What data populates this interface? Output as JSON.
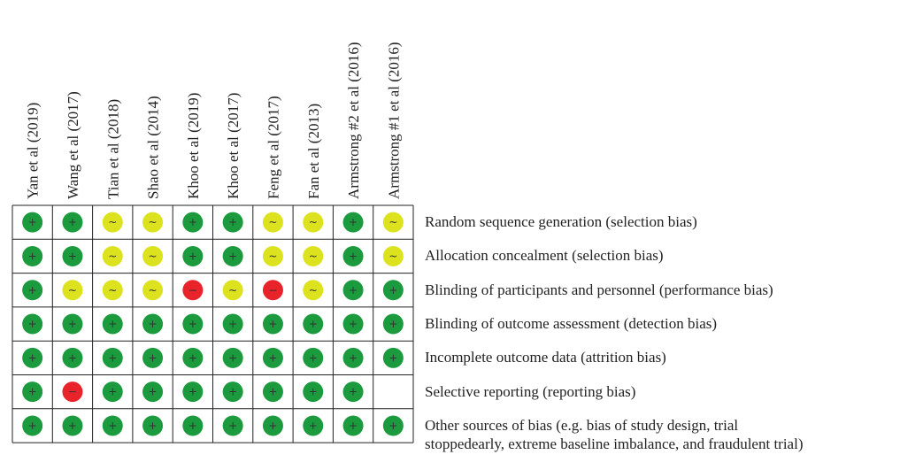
{
  "studies": [
    "Yan et al (2019)",
    "Wang et al (2017)",
    "Tian et al (2018)",
    "Shao et al (2014)",
    "Khoo et al (2019)",
    "Khoo et al (2017)",
    "Feng et al (2017)",
    "Fan et al (2013)",
    "Armstrong #2 et al (2016)",
    "Armstrong #1 et al (2016)"
  ],
  "domains": [
    [
      "Random sequence generation (selection bias)"
    ],
    [
      "Allocation concealment (selection bias)"
    ],
    [
      "Blinding of participants and personnel (performance bias)"
    ],
    [
      "Blinding of outcome assessment (detection bias)"
    ],
    [
      "Incomplete outcome data (attrition bias)"
    ],
    [
      "Selective reporting (reporting bias)"
    ],
    [
      "Other sources of bias (e.g. bias of study design, trial",
      "stoppedearly, extreme baseline imbalance, and fraudulent trial)"
    ]
  ],
  "judgments": [
    [
      "+",
      "+",
      "~",
      "~",
      "+",
      "+",
      "~",
      "~",
      "+",
      "~"
    ],
    [
      "+",
      "+",
      "~",
      "~",
      "+",
      "+",
      "~",
      "~",
      "+",
      "~"
    ],
    [
      "+",
      "~",
      "~",
      "~",
      "−",
      "~",
      "−",
      "~",
      "+",
      "+"
    ],
    [
      "+",
      "+",
      "+",
      "+",
      "+",
      "+",
      "+",
      "+",
      "+",
      "+"
    ],
    [
      "+",
      "+",
      "+",
      "+",
      "+",
      "+",
      "+",
      "+",
      "+",
      "+"
    ],
    [
      "+",
      "−",
      "+",
      "+",
      "+",
      "+",
      "+",
      "+",
      "+",
      null
    ],
    [
      "+",
      "+",
      "+",
      "+",
      "+",
      "+",
      "+",
      "+",
      "+",
      "+"
    ]
  ],
  "colors": {
    "+": "#1b9a3e",
    "~": "#dde21f",
    "−": "#e8232a"
  }
}
